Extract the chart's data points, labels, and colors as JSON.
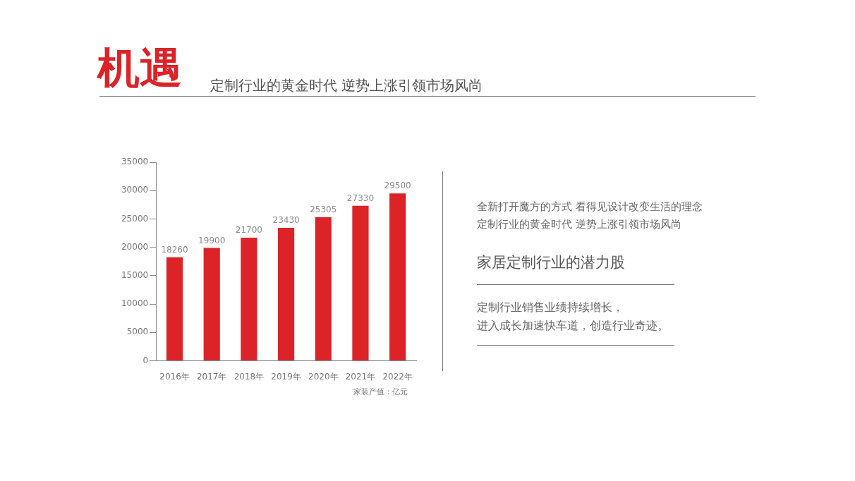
{
  "chart_data": {
    "type": "bar",
    "title": "机遇",
    "subtitle": "定制行业的黄金时代 逆势上涨引领市场风尚",
    "categories": [
      "2016年",
      "2017年",
      "2018年",
      "2019年",
      "2020年",
      "2021年",
      "2022年"
    ],
    "values": [
      18260,
      19900,
      21700,
      23430,
      25305,
      27330,
      29500
    ],
    "color": "#dc2328",
    "ylim": [
      0,
      35000
    ],
    "yticks": [
      0,
      5000,
      10000,
      15000,
      20000,
      25000,
      30000,
      35000
    ],
    "data_labels": true,
    "annotations": [
      "家装产值：亿元",
      "全新打开魔方的方式 看得见设计改变生活的理念",
      "定制行业的黄金时代 逆势上涨引领市场风尚",
      "家居定制行业的潜力股",
      "定制行业销售业绩持续增长，",
      "进入成长加速快车道，创造行业奇迹。"
    ]
  }
}
